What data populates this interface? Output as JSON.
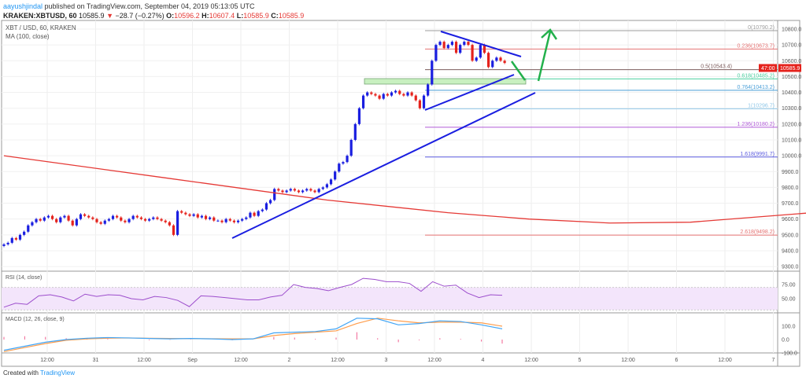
{
  "header": {
    "user": "aayushjindal",
    "published": " published on TradingView.com, September 04, 2019 05:13:05 UTC",
    "symbol": "KRAKEN:XBTUSD, 60",
    "last": "10585.9",
    "change": "−28.7 (−0.27%)",
    "o_label": "O:",
    "o": "10596.2",
    "h_label": "H:",
    "h": "10607.4",
    "l_label": "L:",
    "l": "10585.9",
    "c_label": "C:",
    "c": "10585.9"
  },
  "legend": {
    "series": "XBT / USD, 60, KRAKEN",
    "ma": "MA (100, close)",
    "rsi": "RSI (14, close)",
    "macd": "MACD (12, 26, close, 9)"
  },
  "price_tag": {
    "value": "10585.9",
    "countdown": "47:00"
  },
  "footer": {
    "created": "Created with",
    "brand": "TradingView"
  },
  "colors": {
    "up": "#1a1ee0",
    "down": "#e5221c",
    "ma": "#e53935",
    "trend": "#1a1ee0",
    "arrow": "#22b04b",
    "rsi": "#9c4dcc",
    "macd": "#42a5f5",
    "signal": "#ff9d4d",
    "hist": "#f06292"
  },
  "chart_data": {
    "type": "candlestick",
    "title": "XBT / USD, 60, KRAKEN",
    "price_axis": {
      "ticks": [
        "10800.0",
        "10700.0",
        "10600.0",
        "10500.0",
        "10400.0",
        "10300.0",
        "10200.0",
        "10100.0",
        "10000.0",
        "9900.0",
        "9800.0",
        "9700.0",
        "9600.0",
        "9500.0",
        "9400.0",
        "9300.0"
      ],
      "range": [
        9250,
        10850
      ]
    },
    "time_axis": {
      "ticks": [
        "12:00",
        "31",
        "12:00",
        "Sep",
        "12:00",
        "2",
        "12:00",
        "3",
        "12:00",
        "4",
        "12:00",
        "5",
        "12:00",
        "6",
        "12:00",
        "7"
      ],
      "interval": "60"
    },
    "closes": [
      9440,
      9450,
      9480,
      9470,
      9500,
      9520,
      9560,
      9580,
      9600,
      9590,
      9610,
      9620,
      9600,
      9580,
      9610,
      9620,
      9590,
      9560,
      9600,
      9630,
      9620,
      9610,
      9600,
      9580,
      9570,
      9590,
      9600,
      9620,
      9610,
      9590,
      9580,
      9600,
      9620,
      9610,
      9600,
      9590,
      9600,
      9610,
      9600,
      9590,
      9580,
      9560,
      9500,
      9650,
      9640,
      9630,
      9620,
      9630,
      9610,
      9620,
      9600,
      9610,
      9590,
      9590,
      9580,
      9600,
      9590,
      9580,
      9590,
      9600,
      9610,
      9640,
      9620,
      9650,
      9660,
      9700,
      9720,
      9790,
      9780,
      9770,
      9780,
      9790,
      9780,
      9770,
      9780,
      9790,
      9780,
      9770,
      9790,
      9800,
      9820,
      9850,
      9900,
      9950,
      9960,
      10000,
      10100,
      10200,
      10300,
      10380,
      10400,
      10390,
      10380,
      10360,
      10390,
      10380,
      10400,
      10410,
      10390,
      10380,
      10400,
      10380,
      10350,
      10300,
      10380,
      10450,
      10600,
      10700,
      10720,
      10680,
      10700,
      10720,
      10650,
      10700,
      10720,
      10700,
      10600,
      10620,
      10700,
      10650,
      10560,
      10600,
      10620,
      10600,
      10585.9
    ],
    "ma100": [
      [
        0,
        10000
      ],
      [
        40,
        9860
      ],
      [
        80,
        9720
      ],
      [
        110,
        9640
      ],
      [
        130,
        9600
      ],
      [
        150,
        9575
      ],
      [
        170,
        9580
      ],
      [
        200,
        9640
      ],
      [
        240,
        9760
      ],
      [
        280,
        9880
      ],
      [
        310,
        9970
      ]
    ],
    "fib_levels": [
      {
        "label": "0(10790.2)",
        "price": 10790.2,
        "color": "#9e9e9e"
      },
      {
        "label": "0.236(10673.7)",
        "price": 10673.7,
        "color": "#e57373"
      },
      {
        "label": "0.5(10543.4)",
        "price": 10543.4,
        "color": "#7b5b5b"
      },
      {
        "label": "0.618(10485.2)",
        "price": 10485.2,
        "color": "#4dd0a1"
      },
      {
        "label": "0.764(10413.2)",
        "price": 10413.2,
        "color": "#4a9fd8"
      },
      {
        "label": "1(10296.7)",
        "price": 10296.7,
        "color": "#90c8e8"
      },
      {
        "label": "1.236(10180.2)",
        "price": 10180.2,
        "color": "#b05ad8"
      },
      {
        "label": "1.618(9991.7)",
        "price": 9991.7,
        "color": "#5c5ce0"
      },
      {
        "label": "2.618(9498.2)",
        "price": 9498.2,
        "color": "#e57373"
      }
    ],
    "rsi": {
      "ticks": [
        "75.00",
        "50.00"
      ],
      "band": [
        30,
        70
      ],
      "values": [
        35,
        42,
        40,
        55,
        57,
        53,
        46,
        58,
        54,
        57,
        56,
        50,
        48,
        54,
        52,
        47,
        36,
        55,
        54,
        52,
        50,
        48,
        48,
        53,
        56,
        75,
        70,
        68,
        64,
        70,
        75,
        86,
        84,
        80,
        80,
        77,
        63,
        80,
        72,
        74,
        60,
        52,
        57,
        56
      ]
    },
    "macd": {
      "ticks": [
        "100.0",
        "0.0",
        "-100.0"
      ],
      "macd": [
        -80,
        -50,
        -20,
        0,
        10,
        15,
        12,
        8,
        5,
        8,
        5,
        0,
        5,
        50,
        55,
        60,
        80,
        160,
        155,
        110,
        120,
        140,
        135,
        110,
        80
      ],
      "signal": [
        -90,
        -60,
        -30,
        -5,
        5,
        10,
        12,
        10,
        8,
        7,
        6,
        5,
        5,
        30,
        45,
        55,
        65,
        120,
        160,
        140,
        125,
        130,
        130,
        125,
        100
      ],
      "hist": [
        20,
        25,
        20,
        10,
        5,
        5,
        0,
        -5,
        -2,
        2,
        0,
        -5,
        0,
        20,
        15,
        5,
        15,
        55,
        10,
        -20,
        -5,
        10,
        5,
        -15,
        -30
      ]
    }
  }
}
